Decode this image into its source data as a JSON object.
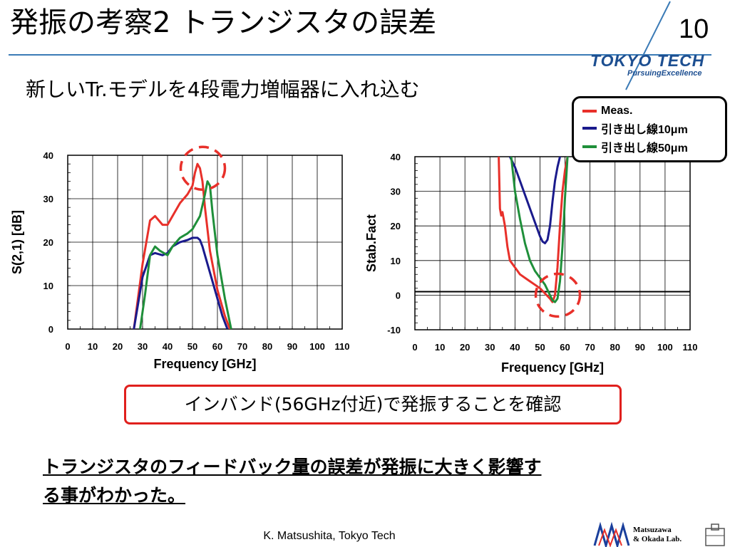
{
  "slide": {
    "title": "発振の考察2 トランジスタの誤差",
    "page_number": "10",
    "subtitle": "新しいTr.モデルを4段電力増幅器に入れ込む",
    "callout": "インバンド(56GHz付近)で発振することを確認",
    "conclusion_lines": [
      "トランジスタのフィードバック量の誤差が発振に大きく影響す",
      "る事がわかった。"
    ],
    "footer_author": "K. Matsushita, Tokyo Tech"
  },
  "logo": {
    "name": "TOKYO TECH",
    "slogan": "PursuingExcellence",
    "accent_color": "#1d4f91"
  },
  "lab_logo": {
    "line1": "Matsuzawa",
    "line2": "& Okada Lab."
  },
  "legend": {
    "items": [
      {
        "label": "Meas.",
        "color": "#e8302a"
      },
      {
        "label": "引き出し線10μm",
        "color": "#1a1a8c"
      },
      {
        "label": "引き出し線50μm",
        "color": "#1f8f3a"
      }
    ]
  },
  "chart_data": [
    {
      "type": "line",
      "xlabel": "Frequency [GHz]",
      "ylabel": "S(2,1) [dB]",
      "xlim": [
        0,
        110
      ],
      "ylim": [
        0,
        40
      ],
      "xticks": [
        0,
        10,
        20,
        30,
        40,
        50,
        60,
        70,
        80,
        90,
        100,
        110
      ],
      "yticks": [
        0,
        10,
        20,
        30,
        40
      ],
      "grid": true,
      "series": [
        {
          "name": "Meas.",
          "color": "#e8302a",
          "x": [
            26.5,
            30,
            33,
            35,
            38,
            40,
            42,
            45,
            48,
            50,
            51,
            52,
            53,
            54,
            55,
            57,
            60,
            63,
            65
          ],
          "y": [
            0,
            15,
            25,
            26,
            24,
            24,
            26,
            29,
            31,
            33,
            36,
            38,
            37,
            34,
            28,
            18,
            9,
            3,
            0
          ]
        },
        {
          "name": "引き出し線10μm",
          "color": "#1a1a8c",
          "x": [
            26.5,
            30,
            33,
            35,
            38,
            40,
            42,
            45,
            48,
            50,
            52,
            53,
            54,
            55,
            57,
            60,
            62,
            64
          ],
          "y": [
            0,
            12,
            17,
            17.5,
            17,
            17.5,
            19,
            20,
            20.5,
            21,
            21,
            20.5,
            19,
            17,
            13,
            7,
            3,
            0
          ]
        },
        {
          "name": "引き出し線50μm",
          "color": "#1f8f3a",
          "x": [
            29,
            31,
            33,
            35,
            37,
            40,
            42,
            45,
            48,
            50,
            52,
            53,
            55,
            56,
            57,
            58,
            60,
            63,
            65.5
          ],
          "y": [
            0,
            8,
            17,
            19,
            18,
            17,
            19,
            21,
            22,
            23,
            25,
            26,
            31,
            34,
            33,
            27,
            17,
            7,
            0
          ]
        }
      ],
      "annotations": [
        {
          "type": "dashed-circle",
          "x": 53,
          "y": 37
        }
      ]
    },
    {
      "type": "line",
      "xlabel": "Frequency [GHz]",
      "ylabel": "Stab.Fact",
      "xlim": [
        0,
        110
      ],
      "ylim": [
        -10,
        40
      ],
      "xticks": [
        0,
        10,
        20,
        30,
        40,
        50,
        60,
        70,
        80,
        90,
        100,
        110
      ],
      "yticks": [
        -10,
        0,
        10,
        20,
        30,
        40
      ],
      "hline": 1,
      "grid": true,
      "series": [
        {
          "name": "Meas.",
          "color": "#e8302a",
          "x": [
            33.5,
            34,
            34.5,
            35,
            36,
            37,
            38,
            39,
            40,
            42,
            44,
            46,
            48,
            50,
            52,
            54,
            55,
            56,
            57,
            58,
            59,
            60,
            61
          ],
          "y": [
            40,
            25,
            23,
            24,
            20,
            14,
            10,
            9,
            8,
            6,
            5,
            4,
            3,
            2,
            0.5,
            -1,
            -2,
            0,
            8,
            20,
            30,
            36,
            40
          ]
        },
        {
          "name": "引き出し線10μm",
          "color": "#1a1a8c",
          "x": [
            38,
            40,
            42,
            44,
            46,
            48,
            50,
            51,
            52,
            53,
            54,
            55,
            56,
            57,
            58,
            60
          ],
          "y": [
            40,
            37,
            33,
            29,
            25,
            21,
            17,
            15.5,
            15,
            16,
            20,
            27,
            33,
            37,
            40,
            42
          ]
        },
        {
          "name": "引き出し線50μm",
          "color": "#1f8f3a",
          "x": [
            38.5,
            40,
            42,
            44,
            46,
            48,
            50,
            52,
            54,
            55,
            56,
            57,
            58,
            59,
            60,
            61
          ],
          "y": [
            40,
            30,
            22,
            15,
            10,
            7,
            5,
            3,
            0,
            -1.5,
            -2,
            -1,
            4,
            14,
            28,
            40
          ]
        }
      ],
      "annotations": [
        {
          "type": "dashed-circle",
          "x": 56,
          "y": 0
        }
      ]
    }
  ]
}
